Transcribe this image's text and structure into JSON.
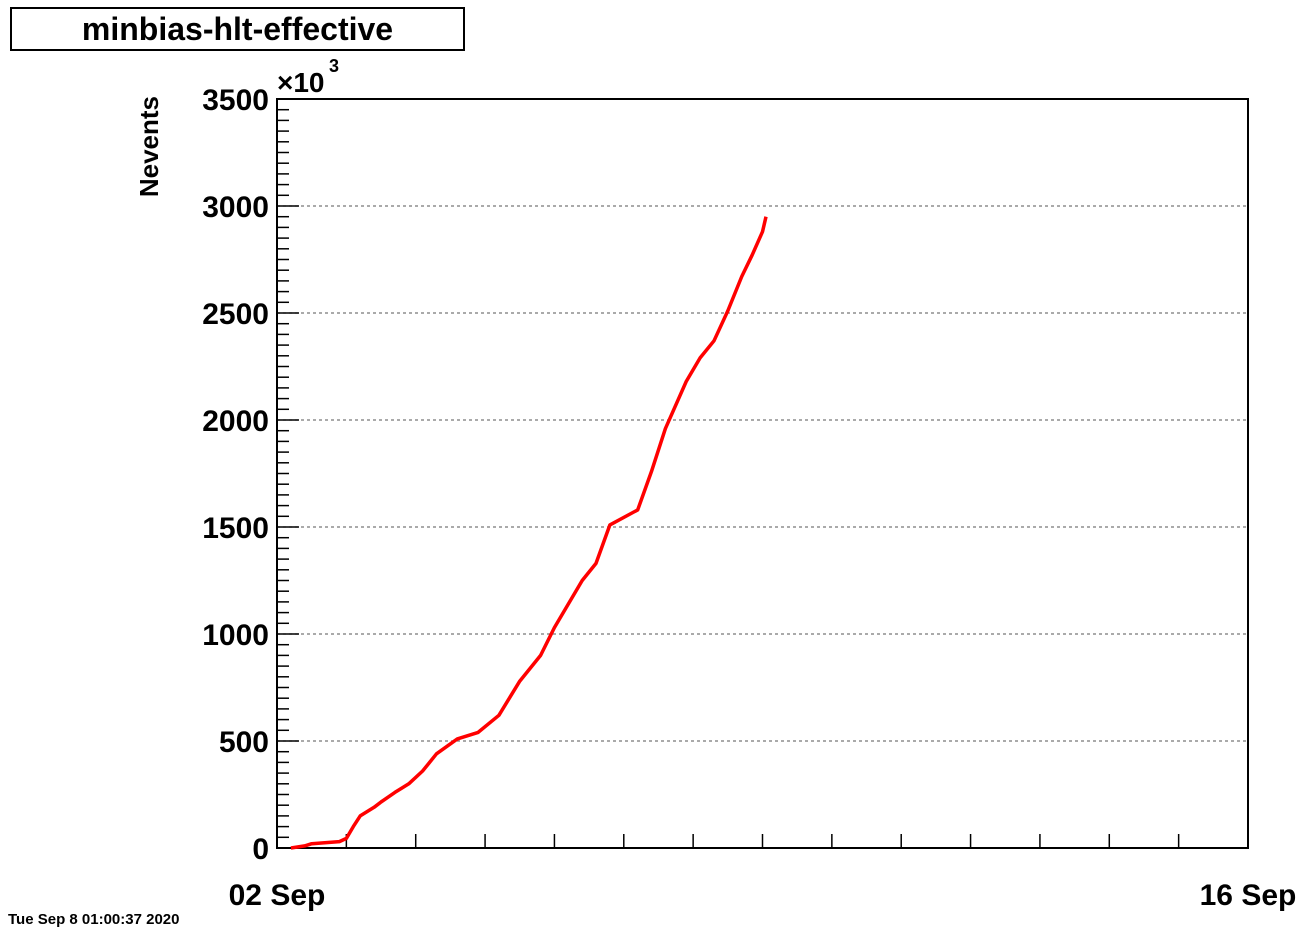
{
  "chart_data": {
    "type": "line",
    "title": "minbias-hlt-effective",
    "xlabel": "",
    "ylabel": "Nevents",
    "y_multiplier": {
      "base": "×10",
      "exponent": "3"
    },
    "x_tick_labels": [
      "02 Sep",
      "16 Sep"
    ],
    "x_range_days": [
      0,
      14
    ],
    "ylim": [
      0,
      3500
    ],
    "y_ticks": [
      0,
      500,
      1000,
      1500,
      2000,
      2500,
      3000,
      3500
    ],
    "grid": "horizontal",
    "series": [
      {
        "color": "#ff0000",
        "x": [
          0.2,
          0.4,
          0.5,
          0.9,
          1.0,
          1.1,
          1.2,
          1.4,
          1.5,
          1.7,
          1.8,
          1.9,
          2.1,
          2.2,
          2.3,
          2.6,
          2.9,
          3.2,
          3.5,
          3.8,
          4.0,
          4.4,
          4.6,
          4.8,
          5.2,
          5.4,
          5.6,
          5.9,
          6.1,
          6.3,
          6.5,
          6.7,
          6.85,
          7.0,
          7.05
        ],
        "y": [
          0,
          10,
          20,
          30,
          45,
          100,
          150,
          190,
          215,
          260,
          280,
          300,
          360,
          400,
          440,
          510,
          540,
          620,
          780,
          900,
          1030,
          1250,
          1330,
          1510,
          1580,
          1760,
          1960,
          2180,
          2290,
          2370,
          2510,
          2670,
          2770,
          2880,
          2950
        ]
      }
    ]
  },
  "timestamp": "Tue Sep  8 01:00:37 2020"
}
